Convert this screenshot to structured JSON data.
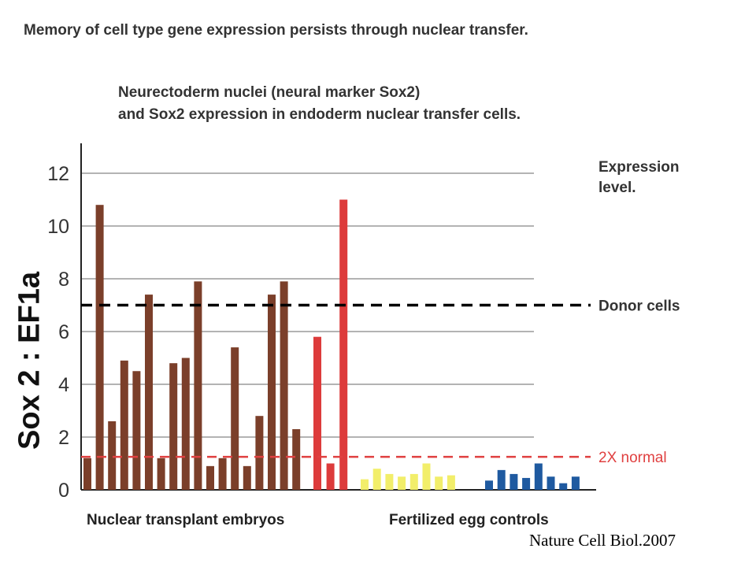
{
  "title": "Memory of cell type gene expression persists through nuclear transfer.",
  "subtitle_lines": [
    "Neurectoderm nuclei (neural marker Sox2)",
    "and Sox2 expression in endoderm nuclear transfer cells."
  ],
  "credit": "Nature Cell Biol.2007",
  "chart_data": {
    "type": "bar",
    "ylabel": "Sox 2 : EF1a",
    "ylim": [
      0,
      13
    ],
    "yticks": [
      0,
      2,
      4,
      6,
      8,
      10,
      12
    ],
    "grid": true,
    "legend_label": "Expression level.",
    "groups": [
      {
        "label": "Nuclear transplant embryos"
      },
      {
        "label": "Fertilized egg controls"
      }
    ],
    "series": [
      {
        "color": "#7b3f2a",
        "values": [
          1.2,
          10.8,
          2.6,
          4.9,
          4.5,
          7.4,
          1.2,
          4.8,
          5.0,
          7.9,
          0.9,
          1.2,
          5.4,
          0.9,
          2.8,
          7.4,
          7.9,
          2.3
        ]
      },
      {
        "color": "#dd3b3b",
        "values": [
          5.8,
          1.0,
          11.0
        ]
      },
      {
        "color": "#f2ee6a",
        "values": [
          0.4,
          0.8,
          0.6,
          0.5,
          0.6,
          1.0,
          0.5,
          0.55
        ]
      },
      {
        "color": "#1f5aa0",
        "values": [
          0.35,
          0.75,
          0.6,
          0.45,
          1.0,
          0.5,
          0.25,
          0.5
        ]
      }
    ],
    "reference_lines": [
      {
        "label": "Donor cells",
        "value": 7.0,
        "color": "#000000"
      },
      {
        "label": "2X normal",
        "value": 1.25,
        "color": "#e04040"
      }
    ]
  }
}
